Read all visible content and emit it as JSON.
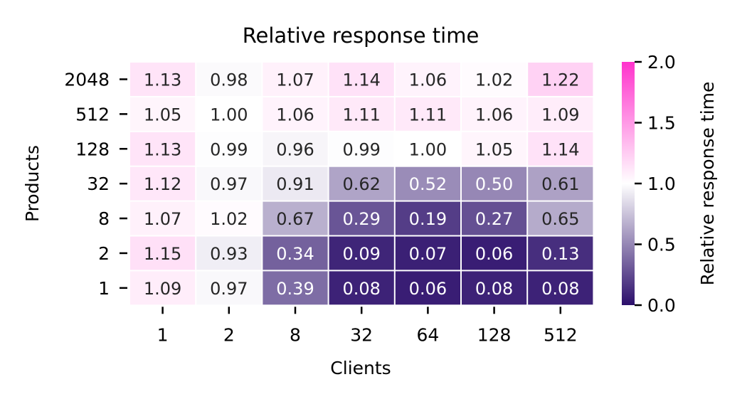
{
  "chart_data": {
    "type": "heatmap",
    "title": "Relative response time",
    "xlabel": "Clients",
    "ylabel": "Products",
    "x_categories": [
      "1",
      "2",
      "8",
      "32",
      "64",
      "128",
      "512"
    ],
    "y_categories": [
      "2048",
      "512",
      "128",
      "32",
      "8",
      "2",
      "1"
    ],
    "values": [
      [
        1.13,
        0.98,
        1.07,
        1.14,
        1.06,
        1.02,
        1.22
      ],
      [
        1.05,
        1.0,
        1.06,
        1.11,
        1.11,
        1.06,
        1.09
      ],
      [
        1.13,
        0.99,
        0.96,
        0.99,
        1.0,
        1.05,
        1.14
      ],
      [
        1.12,
        0.97,
        0.91,
        0.62,
        0.52,
        0.5,
        0.61
      ],
      [
        1.07,
        1.02,
        0.67,
        0.29,
        0.19,
        0.27,
        0.65
      ],
      [
        1.15,
        0.93,
        0.34,
        0.09,
        0.07,
        0.06,
        0.13
      ],
      [
        1.09,
        0.97,
        0.39,
        0.08,
        0.06,
        0.08,
        0.08
      ]
    ],
    "colorbar": {
      "label": "Relative response time",
      "range": [
        0,
        2
      ],
      "ticks": [
        "0.0",
        "0.5",
        "1.0",
        "1.5",
        "2.0"
      ],
      "colors": {
        "low": "#2c0f6b",
        "mid": "#ffffff",
        "high": "#ff33cc"
      }
    }
  }
}
